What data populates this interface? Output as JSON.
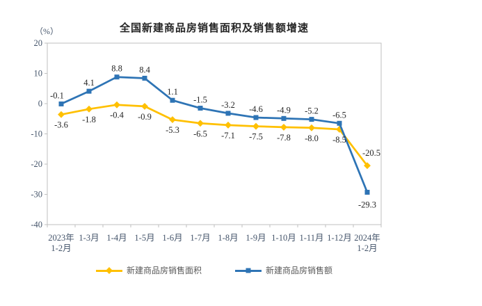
{
  "chart_data": {
    "type": "line",
    "title": "全国新建商品房销售面积及销售额增速",
    "unit_label": "（%）",
    "categories": [
      "2023年\n1-2月",
      "1-3月",
      "1-4月",
      "1-5月",
      "1-6月",
      "1-7月",
      "1-8月",
      "1-9月",
      "1-10月",
      "1-11月",
      "1-12月",
      "2024年\n1-2月"
    ],
    "series": [
      {
        "name": "新建商品房销售面积",
        "color": "#FFC000",
        "marker": "diamond",
        "label_position": "below",
        "values": [
          -3.6,
          -1.8,
          -0.4,
          -0.9,
          -5.3,
          -6.5,
          -7.1,
          -7.5,
          -7.8,
          -8.0,
          -8.5,
          -20.5
        ]
      },
      {
        "name": "新建商品房销售额",
        "color": "#2E74B5",
        "marker": "square",
        "label_position": "above",
        "values": [
          -0.1,
          4.1,
          8.8,
          8.4,
          1.1,
          -1.5,
          -3.2,
          -4.6,
          -4.9,
          -5.2,
          -6.5,
          -29.3
        ]
      }
    ],
    "ylim": [
      -40,
      20
    ],
    "yticks": [
      20,
      10,
      0,
      -10,
      -20,
      -30,
      -40
    ],
    "grid": false,
    "legend_position": "bottom",
    "colors": {
      "axis": "#BFBFBF",
      "tick_label": "#44546A",
      "data_label": "#262626",
      "legend_text": "#595959",
      "title": "#262626"
    }
  }
}
